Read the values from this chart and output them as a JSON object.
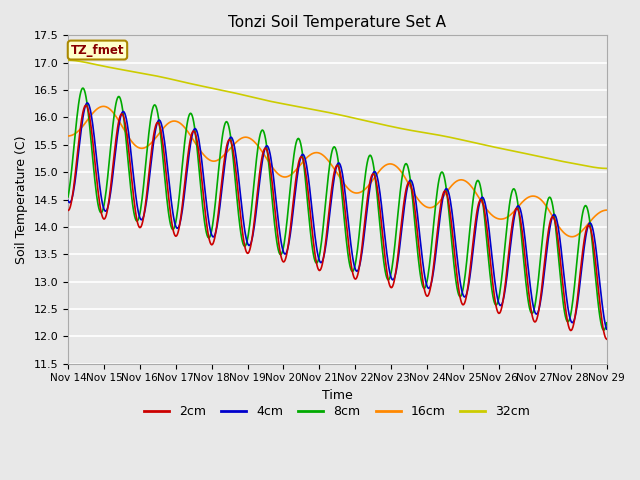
{
  "title": "Tonzi Soil Temperature Set A",
  "xlabel": "Time",
  "ylabel": "Soil Temperature (C)",
  "ylim": [
    11.5,
    17.5
  ],
  "background_color": "#e8e8e8",
  "grid_color": "#ffffff",
  "annotation_text": "TZ_fmet",
  "annotation_bg": "#ffffcc",
  "annotation_border": "#aa8800",
  "annotation_text_color": "#880000",
  "tick_labels": [
    "Nov 14",
    "Nov 15",
    "Nov 16",
    "Nov 17",
    "Nov 18",
    "Nov 19",
    "Nov 20",
    "Nov 21",
    "Nov 22",
    "Nov 23",
    "Nov 24",
    "Nov 25",
    "Nov 26",
    "Nov 27",
    "Nov 28",
    "Nov 29"
  ],
  "line_colors": {
    "2cm": "#cc0000",
    "4cm": "#0000cc",
    "8cm": "#00aa00",
    "16cm": "#ff8800",
    "32cm": "#cccc00"
  },
  "line_width": 1.2
}
